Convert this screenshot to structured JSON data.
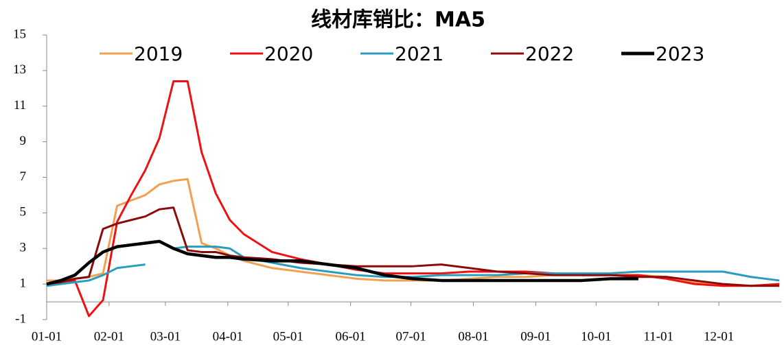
{
  "chart_data": {
    "type": "line",
    "title": "线材库销比：MA5",
    "x": [
      0,
      7,
      14,
      21,
      28,
      35,
      42,
      49,
      56,
      63,
      70,
      77,
      84,
      91,
      98,
      112,
      126,
      140,
      154,
      168,
      182,
      196,
      210,
      224,
      238,
      252,
      266,
      280,
      294,
      308,
      322,
      336,
      350,
      364
    ],
    "xlim": [
      0,
      365
    ],
    "xticks": [
      {
        "value": 0,
        "label": "01-01"
      },
      {
        "value": 31,
        "label": "02-01"
      },
      {
        "value": 59,
        "label": "03-01"
      },
      {
        "value": 90,
        "label": "04-01"
      },
      {
        "value": 120,
        "label": "05-01"
      },
      {
        "value": 151,
        "label": "06-01"
      },
      {
        "value": 181,
        "label": "07-01"
      },
      {
        "value": 212,
        "label": "08-01"
      },
      {
        "value": 243,
        "label": "09-01"
      },
      {
        "value": 273,
        "label": "10-01"
      },
      {
        "value": 304,
        "label": "11-01"
      },
      {
        "value": 334,
        "label": "12-01"
      }
    ],
    "ylim": [
      -1,
      15
    ],
    "yticks": [
      -1,
      1,
      3,
      5,
      7,
      9,
      11,
      13,
      15
    ],
    "series": [
      {
        "name": "2019",
        "color": "#f0a050",
        "values": [
          1.2,
          1.2,
          1.3,
          1.4,
          1.6,
          5.4,
          5.7,
          6.0,
          6.6,
          6.8,
          6.9,
          3.3,
          3.0,
          2.6,
          2.3,
          1.9,
          1.7,
          1.5,
          1.3,
          1.2,
          1.2,
          1.2,
          1.3,
          1.4,
          1.4,
          1.5,
          1.5,
          1.5,
          1.5,
          1.4,
          1.1,
          1.0,
          0.9,
          1.0
        ]
      },
      {
        "name": "2020",
        "color": "#ee1111",
        "values": [
          1.0,
          1.1,
          1.2,
          -0.8,
          0.1,
          4.5,
          6.0,
          7.4,
          9.2,
          12.4,
          12.4,
          8.4,
          6.1,
          4.6,
          3.8,
          2.8,
          2.4,
          2.1,
          1.8,
          1.6,
          1.6,
          1.6,
          1.7,
          1.7,
          1.7,
          1.6,
          1.5,
          1.5,
          1.5,
          1.3,
          1.0,
          0.9,
          0.9,
          1.0
        ]
      },
      {
        "name": "2021",
        "color": "#2a9cbc",
        "values": [
          0.9,
          1.0,
          1.1,
          1.2,
          1.5,
          1.9,
          2.0,
          2.1,
          null,
          3.0,
          3.1,
          3.1,
          3.1,
          3.0,
          2.5,
          2.2,
          1.9,
          1.7,
          1.5,
          1.4,
          1.4,
          1.5,
          1.5,
          1.5,
          1.6,
          1.6,
          1.6,
          1.6,
          1.7,
          1.7,
          1.7,
          1.7,
          1.4,
          1.2
        ]
      },
      {
        "name": "2022",
        "color": "#8b0a0a",
        "values": [
          1.0,
          1.1,
          1.3,
          1.4,
          4.1,
          4.4,
          4.6,
          4.8,
          5.2,
          5.3,
          2.9,
          2.8,
          2.8,
          2.6,
          2.5,
          2.4,
          2.2,
          2.1,
          2.0,
          2.0,
          2.0,
          2.1,
          1.9,
          1.7,
          1.6,
          1.5,
          1.5,
          1.5,
          1.4,
          1.4,
          1.2,
          1.0,
          0.9,
          0.9
        ]
      },
      {
        "name": "2023",
        "color": "#000000",
        "values": [
          1.0,
          1.2,
          1.5,
          2.2,
          2.8,
          3.1,
          3.2,
          3.3,
          3.4,
          3.0,
          2.7,
          2.6,
          2.5,
          2.5,
          2.4,
          2.3,
          2.3,
          2.1,
          1.9,
          1.5,
          1.3,
          1.2,
          1.2,
          1.2,
          1.2,
          1.2,
          1.2,
          1.3,
          1.3,
          null,
          null,
          null,
          null,
          null
        ]
      }
    ]
  }
}
